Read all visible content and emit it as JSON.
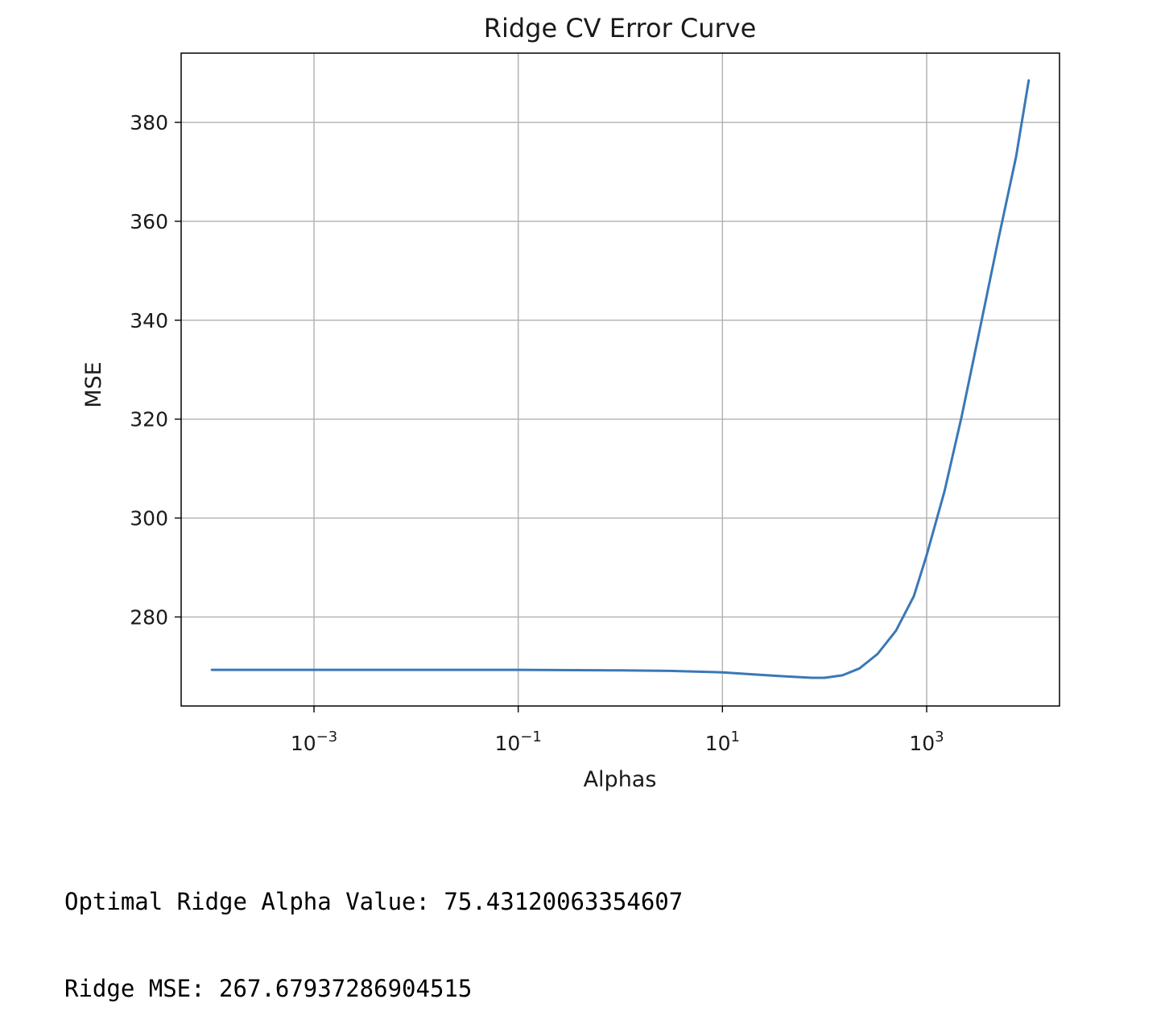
{
  "chart_data": {
    "type": "line",
    "title": "Ridge CV Error Curve",
    "xlabel": "Alphas",
    "ylabel": "MSE",
    "xscale": "log",
    "xlim": [
      5e-05,
      20000
    ],
    "ylim": [
      262,
      394
    ],
    "grid": true,
    "color": "#3a78b6",
    "xticks": [
      {
        "value": 0.001,
        "base": "10",
        "exp": "−3"
      },
      {
        "value": 0.1,
        "base": "10",
        "exp": "−1"
      },
      {
        "value": 10,
        "base": "10",
        "exp": "1"
      },
      {
        "value": 1000,
        "base": "10",
        "exp": "3"
      }
    ],
    "yticks": [
      {
        "value": 280,
        "label": "280"
      },
      {
        "value": 300,
        "label": "300"
      },
      {
        "value": 320,
        "label": "320"
      },
      {
        "value": 340,
        "label": "340"
      },
      {
        "value": 360,
        "label": "360"
      },
      {
        "value": 380,
        "label": "380"
      }
    ],
    "series": [
      {
        "x": [
          0.0001,
          0.001,
          0.01,
          0.1,
          1,
          3,
          10,
          20,
          40,
          75.4,
          100,
          150,
          220,
          330,
          500,
          750,
          1000,
          1500,
          2200,
          3300,
          5000,
          7500,
          10000
        ],
        "y": [
          269.3,
          269.3,
          269.3,
          269.3,
          269.2,
          269.1,
          268.8,
          268.4,
          268.0,
          267.7,
          267.7,
          268.2,
          269.6,
          272.5,
          277.2,
          284.2,
          292.5,
          305.5,
          320.5,
          338.0,
          356.0,
          373.0,
          388.5
        ]
      }
    ]
  },
  "output": {
    "line1": "Optimal Ridge Alpha Value: 75.43120063354607",
    "line2": "Ridge MSE: 267.67937286904515"
  }
}
